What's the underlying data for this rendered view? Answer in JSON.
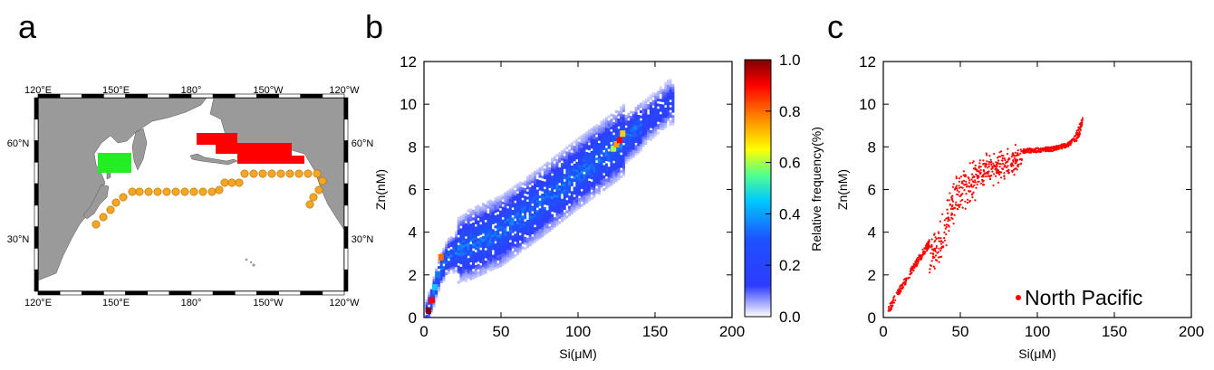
{
  "panels": {
    "a": "a",
    "b": "b",
    "c": "c"
  },
  "map": {
    "top_labels": [
      "120°E",
      "150°E",
      "180°",
      "150°W",
      "120°W"
    ],
    "bottom_labels": [
      "120°E",
      "150°E",
      "180°",
      "150°W",
      "120°W"
    ],
    "lat_labels": [
      "60°N",
      "30°N"
    ],
    "colors": {
      "land": "#9a9a9a",
      "station": "#f5a623",
      "green": "#22ee22",
      "red": "#ff0000"
    }
  },
  "chart_data": [
    {
      "type": "heatmap",
      "panel": "b",
      "xlabel": "Si(μM)",
      "ylabel": "Zn(nM)",
      "xlim": [
        0,
        200
      ],
      "ylim": [
        0,
        12
      ],
      "x_ticks": [
        "0",
        "50",
        "100",
        "150",
        "200"
      ],
      "y_ticks": [
        "0",
        "2",
        "4",
        "6",
        "8",
        "10",
        "12"
      ],
      "colorbar": {
        "label": "Relative frequency(%)",
        "range": [
          0.0,
          1.0
        ],
        "ticks": [
          "0.0",
          "0.2",
          "0.4",
          "0.6",
          "0.8",
          "1.0"
        ]
      },
      "ridge": [
        [
          0,
          0
        ],
        [
          5,
          1.0
        ],
        [
          10,
          2.2
        ],
        [
          15,
          2.8
        ],
        [
          25,
          3.2
        ],
        [
          50,
          4.0
        ],
        [
          75,
          5.3
        ],
        [
          100,
          6.7
        ],
        [
          125,
          8.0
        ],
        [
          140,
          8.9
        ],
        [
          150,
          9.5
        ],
        [
          158,
          10.0
        ]
      ],
      "hotspots": [
        {
          "x": 3,
          "y": 0.3,
          "value": 1.0
        },
        {
          "x": 5,
          "y": 0.8,
          "value": 0.9
        },
        {
          "x": 7,
          "y": 1.4,
          "value": 0.45
        },
        {
          "x": 9,
          "y": 2.0,
          "value": 0.35
        },
        {
          "x": 11,
          "y": 2.8,
          "value": 0.8
        },
        {
          "x": 123,
          "y": 7.9,
          "value": 0.6
        },
        {
          "x": 125,
          "y": 8.1,
          "value": 0.75
        },
        {
          "x": 127,
          "y": 8.3,
          "value": 0.9
        },
        {
          "x": 129,
          "y": 8.6,
          "value": 0.7
        }
      ]
    },
    {
      "type": "scatter",
      "panel": "c",
      "xlabel": "Si(μM)",
      "ylabel": "Zn(nM)",
      "xlim": [
        0,
        200
      ],
      "ylim": [
        0,
        12
      ],
      "x_ticks": [
        "0",
        "50",
        "100",
        "150",
        "200"
      ],
      "y_ticks": [
        "0",
        "2",
        "4",
        "6",
        "8",
        "10",
        "12"
      ],
      "legend": {
        "label": "North Pacific",
        "position": "bottom-right"
      },
      "series": [
        {
          "name": "North Pacific",
          "color": "#ff0000",
          "trend": [
            [
              3,
              0.3
            ],
            [
              10,
              1.2
            ],
            [
              20,
              2.4
            ],
            [
              30,
              3.5
            ],
            [
              38,
              4.5
            ],
            [
              45,
              6.2
            ],
            [
              55,
              7.0
            ],
            [
              70,
              7.4
            ],
            [
              90,
              7.8
            ],
            [
              110,
              7.9
            ],
            [
              120,
              8.1
            ],
            [
              125,
              8.4
            ],
            [
              128,
              8.9
            ],
            [
              129,
              9.2
            ]
          ]
        }
      ]
    }
  ]
}
